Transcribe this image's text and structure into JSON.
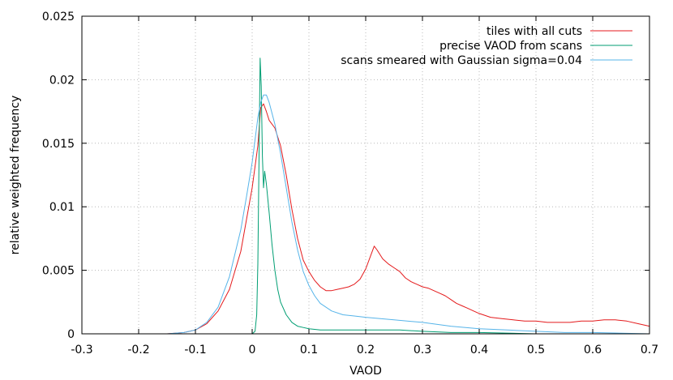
{
  "chart_data": {
    "type": "line",
    "title": "",
    "xlabel": "VAOD",
    "ylabel": "relative weighted frequency",
    "xlim": [
      -0.3,
      0.7
    ],
    "ylim": [
      0,
      0.025
    ],
    "x_ticks": [
      -0.3,
      -0.2,
      -0.1,
      0,
      0.1,
      0.2,
      0.3,
      0.4,
      0.5,
      0.6,
      0.7
    ],
    "x_tick_labels": [
      "-0.3",
      "-0.2",
      "-0.1",
      "0",
      "0.1",
      "0.2",
      "0.3",
      "0.4",
      "0.5",
      "0.6",
      "0.7"
    ],
    "y_ticks": [
      0,
      0.005,
      0.01,
      0.015,
      0.02,
      0.025
    ],
    "y_tick_labels": [
      "0",
      "0.005",
      "0.01",
      "0.015",
      "0.02",
      "0.025"
    ],
    "grid": true,
    "legend_position": "top-right",
    "series": [
      {
        "name": "tiles with all cuts",
        "color": "#e41a1c",
        "points": [
          [
            -0.15,
            0.0
          ],
          [
            -0.12,
            0.0001
          ],
          [
            -0.1,
            0.0003
          ],
          [
            -0.08,
            0.0008
          ],
          [
            -0.06,
            0.0018
          ],
          [
            -0.04,
            0.0035
          ],
          [
            -0.02,
            0.0065
          ],
          [
            0.0,
            0.0115
          ],
          [
            0.01,
            0.0148
          ],
          [
            0.015,
            0.0178
          ],
          [
            0.02,
            0.0181
          ],
          [
            0.025,
            0.0175
          ],
          [
            0.03,
            0.0168
          ],
          [
            0.04,
            0.0162
          ],
          [
            0.05,
            0.0148
          ],
          [
            0.06,
            0.0125
          ],
          [
            0.07,
            0.0098
          ],
          [
            0.08,
            0.0075
          ],
          [
            0.09,
            0.0058
          ],
          [
            0.1,
            0.0049
          ],
          [
            0.11,
            0.0042
          ],
          [
            0.12,
            0.0037
          ],
          [
            0.13,
            0.0034
          ],
          [
            0.14,
            0.0034
          ],
          [
            0.15,
            0.0035
          ],
          [
            0.16,
            0.0036
          ],
          [
            0.17,
            0.0037
          ],
          [
            0.18,
            0.0039
          ],
          [
            0.19,
            0.0043
          ],
          [
            0.2,
            0.0051
          ],
          [
            0.21,
            0.0063
          ],
          [
            0.215,
            0.0069
          ],
          [
            0.22,
            0.0066
          ],
          [
            0.23,
            0.0059
          ],
          [
            0.24,
            0.0055
          ],
          [
            0.25,
            0.0052
          ],
          [
            0.26,
            0.0049
          ],
          [
            0.27,
            0.0044
          ],
          [
            0.28,
            0.0041
          ],
          [
            0.29,
            0.0039
          ],
          [
            0.3,
            0.0037
          ],
          [
            0.31,
            0.0036
          ],
          [
            0.32,
            0.0034
          ],
          [
            0.33,
            0.0032
          ],
          [
            0.34,
            0.003
          ],
          [
            0.35,
            0.0027
          ],
          [
            0.36,
            0.0024
          ],
          [
            0.37,
            0.0022
          ],
          [
            0.38,
            0.002
          ],
          [
            0.39,
            0.0018
          ],
          [
            0.4,
            0.0016
          ],
          [
            0.42,
            0.0013
          ],
          [
            0.44,
            0.0012
          ],
          [
            0.46,
            0.0011
          ],
          [
            0.48,
            0.001
          ],
          [
            0.5,
            0.001
          ],
          [
            0.52,
            0.0009
          ],
          [
            0.54,
            0.0009
          ],
          [
            0.56,
            0.0009
          ],
          [
            0.58,
            0.001
          ],
          [
            0.6,
            0.001
          ],
          [
            0.62,
            0.0011
          ],
          [
            0.64,
            0.0011
          ],
          [
            0.66,
            0.001
          ],
          [
            0.68,
            0.0008
          ],
          [
            0.7,
            0.0006
          ]
        ]
      },
      {
        "name": "precise VAOD from scans",
        "color": "#009e73",
        "points": [
          [
            -0.1,
            0.0
          ],
          [
            0.0,
            0.0
          ],
          [
            0.005,
            0.0002
          ],
          [
            0.008,
            0.0015
          ],
          [
            0.01,
            0.0055
          ],
          [
            0.012,
            0.0135
          ],
          [
            0.014,
            0.0217
          ],
          [
            0.016,
            0.0195
          ],
          [
            0.018,
            0.014
          ],
          [
            0.02,
            0.0115
          ],
          [
            0.022,
            0.0128
          ],
          [
            0.025,
            0.0118
          ],
          [
            0.03,
            0.0095
          ],
          [
            0.035,
            0.007
          ],
          [
            0.04,
            0.005
          ],
          [
            0.045,
            0.0035
          ],
          [
            0.05,
            0.0025
          ],
          [
            0.06,
            0.0015
          ],
          [
            0.07,
            0.0009
          ],
          [
            0.08,
            0.0006
          ],
          [
            0.09,
            0.0005
          ],
          [
            0.1,
            0.0004
          ],
          [
            0.12,
            0.0003
          ],
          [
            0.15,
            0.0003
          ],
          [
            0.18,
            0.0003
          ],
          [
            0.2,
            0.0003
          ],
          [
            0.23,
            0.0003
          ],
          [
            0.26,
            0.0003
          ],
          [
            0.3,
            0.0002
          ],
          [
            0.35,
            0.0001
          ],
          [
            0.4,
            0.0001
          ],
          [
            0.5,
            0.0
          ],
          [
            0.7,
            0.0
          ]
        ]
      },
      {
        "name": "scans smeared with Gaussian sigma=0.04",
        "color": "#56b4e9",
        "points": [
          [
            -0.15,
            0.0
          ],
          [
            -0.12,
            0.0001
          ],
          [
            -0.1,
            0.0003
          ],
          [
            -0.08,
            0.0009
          ],
          [
            -0.06,
            0.0021
          ],
          [
            -0.04,
            0.0045
          ],
          [
            -0.02,
            0.0082
          ],
          [
            -0.01,
            0.0108
          ],
          [
            0.0,
            0.0135
          ],
          [
            0.01,
            0.017
          ],
          [
            0.015,
            0.0182
          ],
          [
            0.02,
            0.0188
          ],
          [
            0.025,
            0.0188
          ],
          [
            0.03,
            0.0182
          ],
          [
            0.04,
            0.0165
          ],
          [
            0.05,
            0.0142
          ],
          [
            0.06,
            0.0115
          ],
          [
            0.07,
            0.0088
          ],
          [
            0.08,
            0.0066
          ],
          [
            0.09,
            0.0049
          ],
          [
            0.1,
            0.0038
          ],
          [
            0.11,
            0.003
          ],
          [
            0.12,
            0.0024
          ],
          [
            0.14,
            0.0018
          ],
          [
            0.16,
            0.0015
          ],
          [
            0.18,
            0.0014
          ],
          [
            0.2,
            0.0013
          ],
          [
            0.25,
            0.0011
          ],
          [
            0.3,
            0.0009
          ],
          [
            0.35,
            0.0006
          ],
          [
            0.4,
            0.0004
          ],
          [
            0.45,
            0.0003
          ],
          [
            0.5,
            0.0002
          ],
          [
            0.55,
            0.0001
          ],
          [
            0.6,
            0.0001
          ],
          [
            0.7,
            0.0
          ]
        ]
      }
    ]
  }
}
